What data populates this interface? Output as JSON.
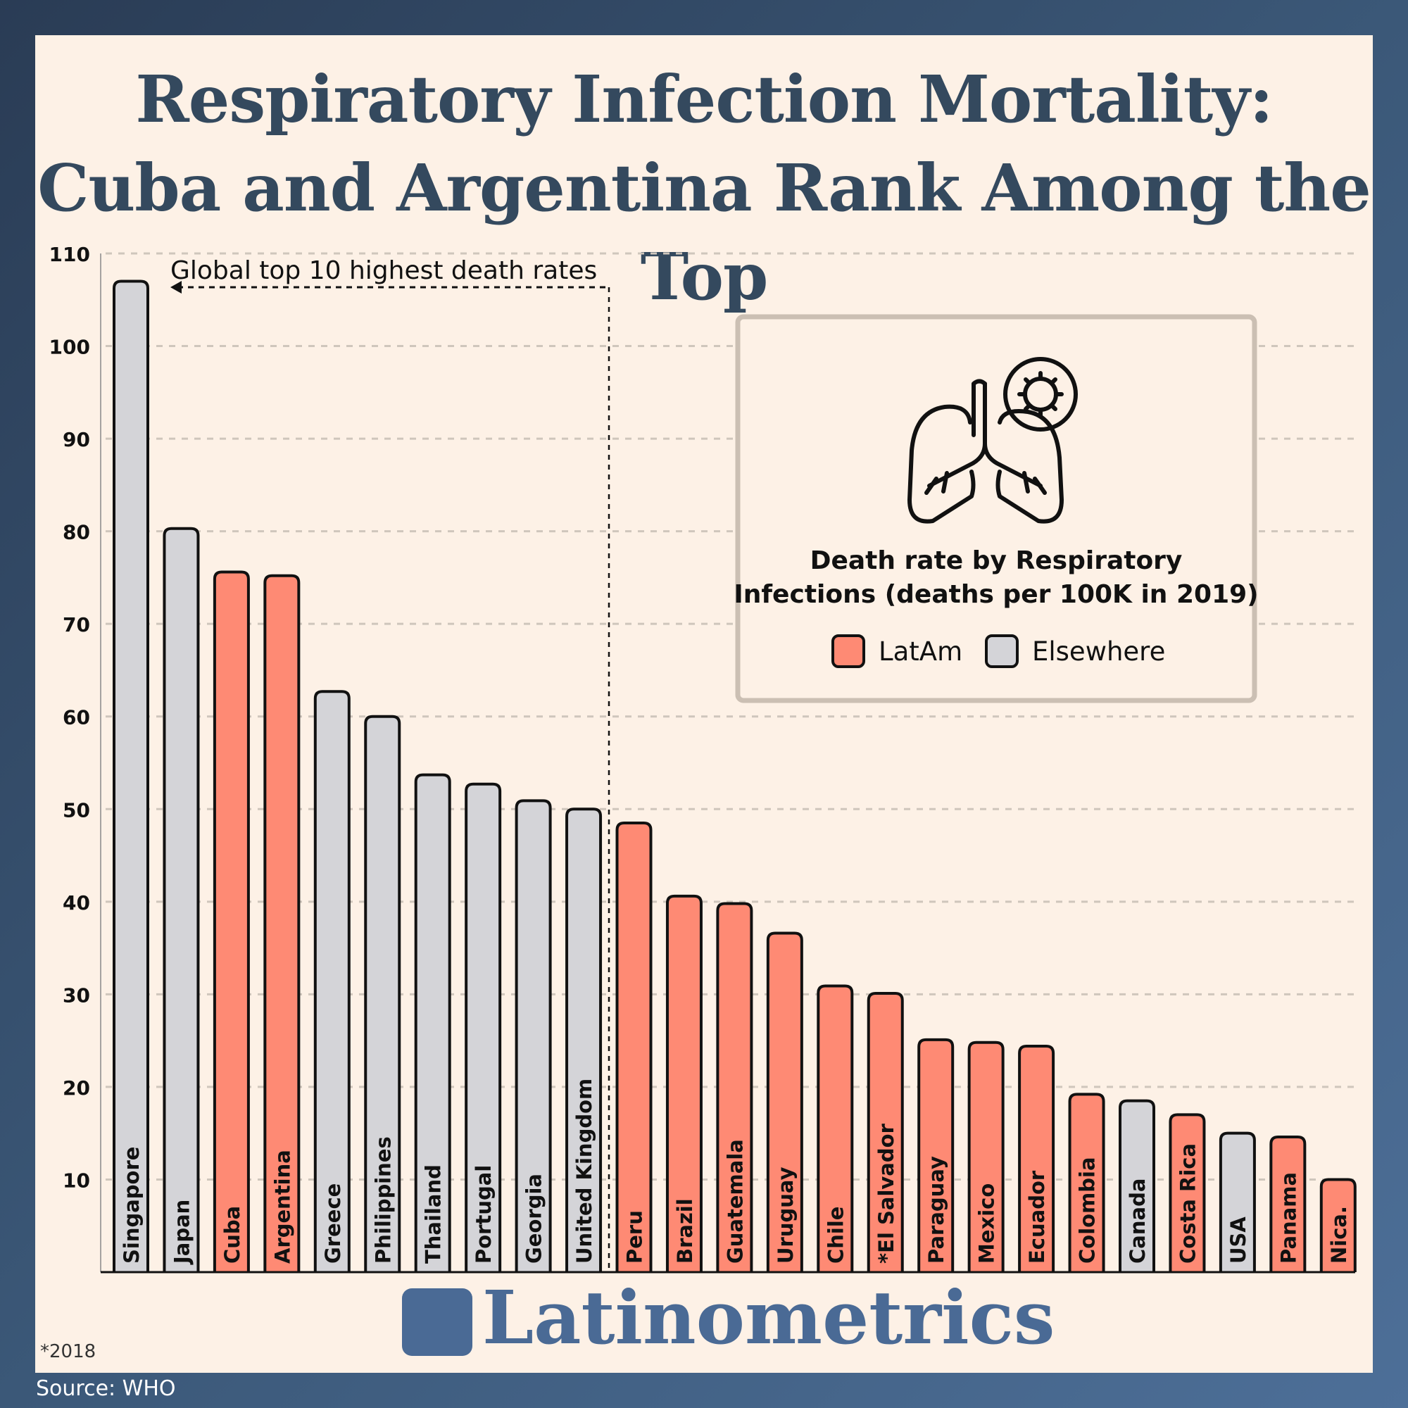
{
  "title": "Respiratory Infection Mortality: Cuba and Argentina Rank Among the Top",
  "brand": "Latinometrics",
  "footnote": "*2018",
  "source": "Source: WHO",
  "colors": {
    "LatAm": "#fe8a74",
    "Elsewhere": "#d4d4d8",
    "title": "#34495e",
    "brand": "#4a6a95"
  },
  "chart_data": {
    "type": "bar",
    "title": "Death rate by Respiratory Infections (deaths per 100K in 2019)",
    "legend": [
      "LatAm",
      "Elsewhere"
    ],
    "legend_placement": "top-right",
    "annotation": "Global top 10 highest death rates",
    "ylim": [
      0,
      110
    ],
    "yticks": [
      10,
      20,
      30,
      40,
      50,
      60,
      70,
      80,
      90,
      100,
      110
    ],
    "grid": true,
    "categories": [
      "Singapore",
      "Japan",
      "Cuba",
      "Argentina",
      "Greece",
      "Philippines",
      "Thailand",
      "Portugal",
      "Georgia",
      "United Kingdom",
      "Peru",
      "Brazil",
      "Guatemala",
      "Uruguay",
      "Chile",
      "*El Salvador",
      "Paraguay",
      "Mexico",
      "Ecuador",
      "Colombia",
      "Canada",
      "Costa Rica",
      "USA",
      "Panama",
      "Nica."
    ],
    "values": [
      107.0,
      80.3,
      75.6,
      75.2,
      62.7,
      60.0,
      53.7,
      52.7,
      50.9,
      50.0,
      48.5,
      40.6,
      39.8,
      36.6,
      30.9,
      30.1,
      25.1,
      24.8,
      24.4,
      19.2,
      18.5,
      17.0,
      15.0,
      14.6,
      10.0
    ],
    "groups": [
      "Elsewhere",
      "Elsewhere",
      "LatAm",
      "LatAm",
      "Elsewhere",
      "Elsewhere",
      "Elsewhere",
      "Elsewhere",
      "Elsewhere",
      "Elsewhere",
      "LatAm",
      "LatAm",
      "LatAm",
      "LatAm",
      "LatAm",
      "LatAm",
      "LatAm",
      "LatAm",
      "LatAm",
      "LatAm",
      "Elsewhere",
      "LatAm",
      "Elsewhere",
      "LatAm",
      "LatAm"
    ]
  }
}
